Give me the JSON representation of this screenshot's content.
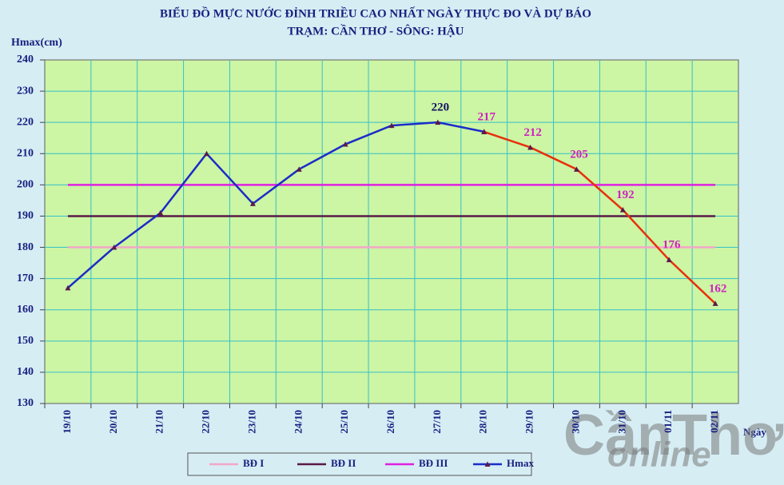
{
  "chart_data": {
    "type": "line",
    "title": "BIỂU ĐỒ MỰC NƯỚC ĐỈNH TRIỀU CAO NHẤT NGÀY THỰC ĐO VÀ DỰ BÁO",
    "subtitle": "TRẠM: CẦN THƠ - SÔNG: HẬU",
    "y_label": "Hmax(cm)",
    "x_label": "Ngày",
    "watermark": [
      "CầnThơ",
      "online"
    ],
    "categories": [
      "19/10",
      "20/10",
      "21/10",
      "22/10",
      "23/10",
      "24/10",
      "25/10",
      "26/10",
      "27/10",
      "28/10",
      "29/10",
      "30/10",
      "31/10",
      "01/11",
      "02/11"
    ],
    "ylim": [
      130,
      240
    ],
    "yticks": [
      130,
      140,
      150,
      160,
      170,
      180,
      190,
      200,
      210,
      220,
      230,
      240
    ],
    "grid": true,
    "reference_lines": [
      {
        "name": "BĐ I",
        "value": 180,
        "color": "#f4a6c8"
      },
      {
        "name": "BĐ II",
        "value": 190,
        "color": "#5a1a48"
      },
      {
        "name": "BĐ III",
        "value": 200,
        "color": "#e020e0"
      }
    ],
    "series": [
      {
        "name": "Hmax",
        "color": "#1c2cc8",
        "label_color": "#101060",
        "values": [
          167,
          180,
          191,
          210,
          194,
          205,
          213,
          219,
          220,
          217,
          null,
          null,
          null,
          null,
          null
        ],
        "value_labels": [
          null,
          null,
          null,
          null,
          null,
          null,
          null,
          null,
          "220",
          null,
          null,
          null,
          null,
          null,
          null
        ]
      },
      {
        "color": "#e8300c",
        "label_color": "#d020c0",
        "values": [
          null,
          null,
          null,
          null,
          null,
          null,
          null,
          null,
          null,
          217,
          212,
          205,
          192,
          176,
          162
        ],
        "value_labels": [
          null,
          null,
          null,
          null,
          null,
          null,
          null,
          null,
          null,
          "217",
          "212",
          "205",
          "192",
          "176",
          "162"
        ]
      }
    ],
    "legend": "bottom"
  }
}
